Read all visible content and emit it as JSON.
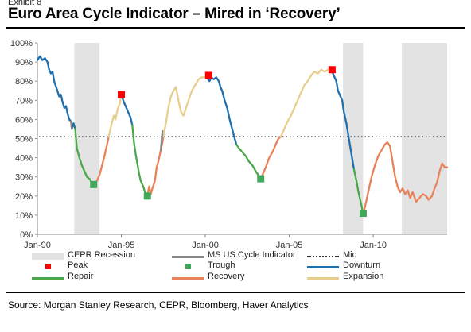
{
  "header": {
    "exhibit": "Exhibit 8",
    "title": "Euro Area Cycle Indicator – Mired in ‘Recovery’"
  },
  "footer": {
    "source": "Source: Morgan Stanley Research, CEPR, Bloomberg, Haver Analytics"
  },
  "colors": {
    "downturn": "#1f6fad",
    "repair": "#4aa84a",
    "recovery": "#e8825a",
    "expansion": "#e6cf8c",
    "recession": "#e3e3e3",
    "peak": "#ff0000",
    "trough": "#3fa85a",
    "us_indicator": "#888888",
    "mid": "#333333"
  },
  "chart_data": {
    "type": "line",
    "title": "Euro Area Cycle Indicator – Mired in ‘Recovery’",
    "xlabel": "",
    "ylabel": "",
    "xlim": [
      1990.0,
      2014.4
    ],
    "ylim": [
      0,
      100
    ],
    "x_ticks": [
      1990,
      1995,
      2000,
      2005,
      2010
    ],
    "x_tick_labels": [
      "Jan-90",
      "Jan-95",
      "Jan-00",
      "Jan-05",
      "Jan-10"
    ],
    "y_ticks": [
      0,
      10,
      20,
      30,
      40,
      50,
      60,
      70,
      80,
      90,
      100
    ],
    "y_tick_labels": [
      "0%",
      "10%",
      "20%",
      "30%",
      "40%",
      "50%",
      "60%",
      "70%",
      "80%",
      "90%",
      "100%"
    ],
    "grid": false,
    "legend_position": "bottom",
    "mid_line": 51,
    "recessions": [
      {
        "start": 1992.2,
        "end": 1993.7
      },
      {
        "start": 2008.2,
        "end": 2009.4
      },
      {
        "start": 2011.7,
        "end": 2014.4
      }
    ],
    "series": [
      {
        "name": "Downturn",
        "color": "#1f6fad",
        "segments": [
          [
            [
              1990.0,
              91
            ],
            [
              1990.15,
              93
            ],
            [
              1990.3,
              91
            ],
            [
              1990.45,
              92
            ],
            [
              1990.6,
              90
            ],
            [
              1990.7,
              86
            ],
            [
              1990.8,
              84
            ],
            [
              1990.9,
              85
            ],
            [
              1991.0,
              80
            ],
            [
              1991.15,
              76
            ],
            [
              1991.3,
              72
            ],
            [
              1991.4,
              73
            ],
            [
              1991.5,
              69
            ],
            [
              1991.6,
              66
            ],
            [
              1991.7,
              67
            ],
            [
              1991.8,
              63
            ],
            [
              1991.9,
              60
            ],
            [
              1992.0,
              59
            ],
            [
              1992.05,
              55
            ],
            [
              1992.15,
              58
            ],
            [
              1992.25,
              55
            ]
          ],
          [
            [
              1995.0,
              73
            ],
            [
              1995.15,
              69
            ],
            [
              1995.3,
              66
            ],
            [
              1995.45,
              63
            ],
            [
              1995.55,
              61
            ],
            [
              1995.65,
              57
            ]
          ],
          [
            [
              2000.1,
              82
            ],
            [
              2000.25,
              80
            ],
            [
              2000.35,
              82
            ],
            [
              2000.5,
              81
            ],
            [
              2000.65,
              82
            ],
            [
              2000.8,
              80
            ],
            [
              2000.9,
              77
            ],
            [
              2001.0,
              75
            ],
            [
              2001.15,
              70
            ],
            [
              2001.3,
              66
            ],
            [
              2001.45,
              60
            ],
            [
              2001.6,
              55
            ],
            [
              2001.75,
              50
            ],
            [
              2001.85,
              47
            ]
          ],
          [
            [
              2007.5,
              86
            ],
            [
              2007.65,
              83
            ],
            [
              2007.8,
              80
            ],
            [
              2007.9,
              75
            ],
            [
              2008.05,
              72
            ],
            [
              2008.15,
              70
            ],
            [
              2008.25,
              64
            ],
            [
              2008.4,
              58
            ],
            [
              2008.55,
              50
            ],
            [
              2008.7,
              42
            ],
            [
              2008.85,
              34
            ]
          ]
        ]
      },
      {
        "name": "Repair",
        "color": "#4aa84a",
        "segments": [
          [
            [
              1992.25,
              55
            ],
            [
              1992.35,
              45
            ],
            [
              1992.5,
              40
            ],
            [
              1992.65,
              36
            ],
            [
              1992.8,
              33
            ],
            [
              1992.95,
              30
            ],
            [
              1993.1,
              29
            ],
            [
              1993.25,
              27
            ],
            [
              1993.4,
              26
            ]
          ],
          [
            [
              1995.65,
              57
            ],
            [
              1995.75,
              48
            ],
            [
              1995.85,
              42
            ],
            [
              1995.95,
              37
            ],
            [
              1996.05,
              32
            ],
            [
              1996.15,
              28
            ],
            [
              1996.3,
              25
            ],
            [
              1996.45,
              21
            ],
            [
              1996.55,
              20
            ]
          ],
          [
            [
              2001.85,
              47
            ],
            [
              2002.0,
              45
            ],
            [
              2002.2,
              43
            ],
            [
              2002.4,
              41
            ],
            [
              2002.6,
              38
            ],
            [
              2002.8,
              36
            ],
            [
              2003.0,
              33
            ],
            [
              2003.15,
              31
            ],
            [
              2003.3,
              29
            ]
          ],
          [
            [
              2008.85,
              34
            ],
            [
              2009.0,
              28
            ],
            [
              2009.1,
              23
            ],
            [
              2009.2,
              19
            ],
            [
              2009.3,
              15
            ],
            [
              2009.4,
              11
            ]
          ]
        ]
      },
      {
        "name": "Recovery",
        "color": "#e8825a",
        "segments": [
          [
            [
              1993.4,
              26
            ],
            [
              1993.55,
              28
            ],
            [
              1993.7,
              31
            ],
            [
              1993.85,
              36
            ],
            [
              1994.0,
              41
            ],
            [
              1994.15,
              47
            ],
            [
              1994.25,
              51
            ]
          ],
          [
            [
              1996.55,
              20
            ],
            [
              1996.65,
              25
            ],
            [
              1996.75,
              21
            ],
            [
              1996.85,
              24
            ],
            [
              1997.0,
              28
            ],
            [
              1997.1,
              35
            ],
            [
              1997.2,
              38
            ],
            [
              1997.35,
              44
            ],
            [
              1997.45,
              48
            ],
            [
              1997.5,
              51
            ]
          ],
          [
            [
              2003.3,
              29
            ],
            [
              2003.45,
              32
            ],
            [
              2003.6,
              35
            ],
            [
              2003.8,
              40
            ],
            [
              2004.0,
              43
            ],
            [
              2004.2,
              47
            ],
            [
              2004.35,
              50
            ],
            [
              2004.5,
              51
            ]
          ],
          [
            [
              2009.4,
              11
            ],
            [
              2009.5,
              14
            ],
            [
              2009.7,
              22
            ],
            [
              2009.9,
              30
            ],
            [
              2010.1,
              36
            ],
            [
              2010.3,
              41
            ],
            [
              2010.5,
              44
            ],
            [
              2010.7,
              47
            ],
            [
              2010.85,
              48
            ],
            [
              2011.0,
              46
            ],
            [
              2011.15,
              38
            ],
            [
              2011.3,
              30
            ],
            [
              2011.45,
              25
            ],
            [
              2011.6,
              22
            ],
            [
              2011.75,
              24
            ],
            [
              2011.9,
              21
            ],
            [
              2012.05,
              23
            ],
            [
              2012.2,
              19
            ],
            [
              2012.35,
              22
            ],
            [
              2012.55,
              17
            ],
            [
              2012.75,
              19
            ],
            [
              2012.95,
              21
            ],
            [
              2013.15,
              20
            ],
            [
              2013.3,
              18
            ],
            [
              2013.5,
              20
            ],
            [
              2013.65,
              24
            ],
            [
              2013.8,
              27
            ],
            [
              2013.95,
              33
            ],
            [
              2014.1,
              37
            ],
            [
              2014.25,
              35
            ],
            [
              2014.4,
              35
            ]
          ]
        ]
      },
      {
        "name": "Expansion",
        "color": "#e6cf8c",
        "segments": [
          [
            [
              1994.25,
              51
            ],
            [
              1994.4,
              57
            ],
            [
              1994.55,
              62
            ],
            [
              1994.65,
              60
            ],
            [
              1994.8,
              66
            ],
            [
              1994.9,
              68
            ],
            [
              1995.0,
              73
            ]
          ],
          [
            [
              1997.5,
              51
            ],
            [
              1997.65,
              58
            ],
            [
              1997.8,
              66
            ],
            [
              1997.95,
              72
            ],
            [
              1998.1,
              75
            ],
            [
              1998.25,
              77
            ],
            [
              1998.4,
              70
            ],
            [
              1998.55,
              64
            ],
            [
              1998.7,
              62
            ],
            [
              1998.85,
              66
            ],
            [
              1999.0,
              70
            ],
            [
              1999.2,
              75
            ],
            [
              1999.4,
              78
            ],
            [
              1999.6,
              81
            ],
            [
              1999.8,
              82
            ],
            [
              2000.1,
              82
            ]
          ],
          [
            [
              2004.5,
              51
            ],
            [
              2004.7,
              55
            ],
            [
              2004.9,
              59
            ],
            [
              2005.1,
              62
            ],
            [
              2005.3,
              66
            ],
            [
              2005.5,
              70
            ],
            [
              2005.7,
              74
            ],
            [
              2005.9,
              78
            ],
            [
              2006.1,
              80
            ],
            [
              2006.3,
              83
            ],
            [
              2006.5,
              85
            ],
            [
              2006.7,
              84
            ],
            [
              2006.9,
              86
            ],
            [
              2007.1,
              85
            ],
            [
              2007.3,
              86
            ],
            [
              2007.5,
              86
            ]
          ]
        ]
      },
      {
        "name": "MS US Cycle Indicator",
        "color": "#888888",
        "segments": [
          [
            [
              1992.0,
              59
            ],
            [
              1992.05,
              55
            ]
          ],
          [
            [
              1997.35,
              44
            ],
            [
              1997.45,
              54
            ]
          ]
        ]
      }
    ],
    "peaks": [
      [
        1995.0,
        73
      ],
      [
        2000.2,
        83
      ],
      [
        2007.55,
        86
      ]
    ],
    "troughs": [
      [
        1993.35,
        26
      ],
      [
        1996.55,
        20
      ],
      [
        2003.3,
        29
      ],
      [
        2009.4,
        11
      ]
    ],
    "legend": [
      {
        "label": "CEPR Recession",
        "kind": "recession"
      },
      {
        "label": "MS US Cycle Indicator",
        "kind": "us_indicator"
      },
      {
        "label": "Mid",
        "kind": "mid"
      },
      {
        "label": "Peak",
        "kind": "peak"
      },
      {
        "label": "Trough",
        "kind": "trough"
      },
      {
        "label": "Downturn",
        "kind": "downturn"
      },
      {
        "label": "Repair",
        "kind": "repair"
      },
      {
        "label": "Recovery",
        "kind": "recovery"
      },
      {
        "label": "Expansion",
        "kind": "expansion"
      }
    ]
  }
}
